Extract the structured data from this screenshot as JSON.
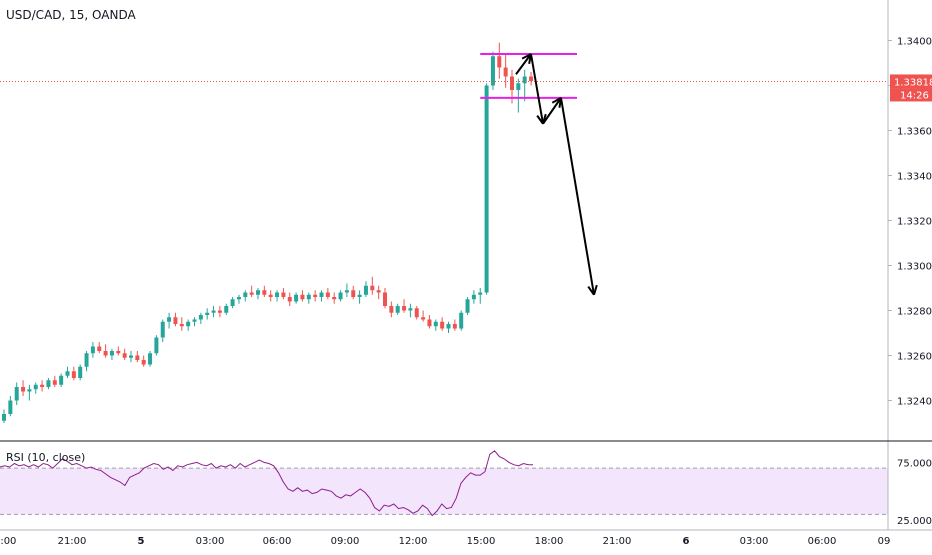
{
  "chart_data": [
    {
      "type": "candlestick",
      "title": "USD/CAD, 15, OANDA",
      "last_price": "1.33818",
      "countdown": "14:26",
      "ylim": [
        1.3222,
        1.3418
      ],
      "y_ticks": [
        "1.34000",
        "1.33800",
        "1.33600",
        "1.33400",
        "1.33200",
        "1.33000",
        "1.32800",
        "1.32600",
        "1.32400"
      ],
      "x_ticks": [
        "18:00",
        "21:00",
        "5",
        "03:00",
        "06:00",
        "09:00",
        "12:00",
        "15:00",
        "18:00",
        "21:00",
        "6",
        "03:00",
        "06:00",
        "09"
      ],
      "bold_x_ticks": [
        "5",
        "6"
      ],
      "colors": {
        "up": "#26a69a",
        "down": "#ef5350",
        "last_price": "#ef5350",
        "level_lines": "#e91ee9",
        "projection": "#000000"
      },
      "series": [
        {
          "ohlc": [
            [
              1.3231,
              1.3236,
              1.323,
              1.3234
            ],
            [
              1.3234,
              1.3242,
              1.3233,
              1.324
            ],
            [
              1.324,
              1.3248,
              1.3238,
              1.3246
            ],
            [
              1.3246,
              1.3249,
              1.3242,
              1.3244
            ],
            [
              1.3244,
              1.3247,
              1.324,
              1.3245
            ],
            [
              1.3245,
              1.3248,
              1.3243,
              1.3247
            ],
            [
              1.3247,
              1.3249,
              1.3244,
              1.3246
            ],
            [
              1.3246,
              1.325,
              1.3245,
              1.3249
            ],
            [
              1.3249,
              1.3251,
              1.3246,
              1.3247
            ],
            [
              1.3247,
              1.3252,
              1.3246,
              1.3251
            ],
            [
              1.3251,
              1.3255,
              1.325,
              1.3253
            ],
            [
              1.3253,
              1.3255,
              1.3249,
              1.325
            ],
            [
              1.325,
              1.3256,
              1.3249,
              1.3255
            ],
            [
              1.3255,
              1.3262,
              1.3253,
              1.3261
            ],
            [
              1.3261,
              1.3266,
              1.3259,
              1.3264
            ],
            [
              1.3264,
              1.3266,
              1.3261,
              1.3262
            ],
            [
              1.3262,
              1.3265,
              1.3259,
              1.326
            ],
            [
              1.326,
              1.3263,
              1.3258,
              1.3262
            ],
            [
              1.3262,
              1.3264,
              1.326,
              1.3261
            ],
            [
              1.3261,
              1.3263,
              1.3258,
              1.3259
            ],
            [
              1.3259,
              1.3262,
              1.3257,
              1.326
            ],
            [
              1.326,
              1.3262,
              1.3257,
              1.3258
            ],
            [
              1.3258,
              1.326,
              1.3255,
              1.3256
            ],
            [
              1.3256,
              1.3262,
              1.3255,
              1.3261
            ],
            [
              1.3261,
              1.3269,
              1.326,
              1.3268
            ],
            [
              1.3268,
              1.3276,
              1.3266,
              1.3275
            ],
            [
              1.3275,
              1.3279,
              1.3272,
              1.3277
            ],
            [
              1.3277,
              1.3279,
              1.3273,
              1.3274
            ],
            [
              1.3274,
              1.3277,
              1.3271,
              1.3273
            ],
            [
              1.3273,
              1.3276,
              1.3271,
              1.3275
            ],
            [
              1.3275,
              1.3277,
              1.3273,
              1.3276
            ],
            [
              1.3276,
              1.3279,
              1.3274,
              1.3278
            ],
            [
              1.3278,
              1.3281,
              1.3276,
              1.3279
            ],
            [
              1.3279,
              1.3282,
              1.3277,
              1.328
            ],
            [
              1.328,
              1.3282,
              1.3277,
              1.3279
            ],
            [
              1.3279,
              1.3283,
              1.3278,
              1.3282
            ],
            [
              1.3282,
              1.3286,
              1.3281,
              1.3285
            ],
            [
              1.3285,
              1.3287,
              1.3283,
              1.3286
            ],
            [
              1.3286,
              1.3289,
              1.3284,
              1.3288
            ],
            [
              1.3288,
              1.3291,
              1.3286,
              1.3287
            ],
            [
              1.3287,
              1.329,
              1.3285,
              1.3289
            ],
            [
              1.3289,
              1.3291,
              1.3286,
              1.3287
            ],
            [
              1.3287,
              1.3289,
              1.3284,
              1.3286
            ],
            [
              1.3286,
              1.3289,
              1.3284,
              1.3288
            ],
            [
              1.3288,
              1.329,
              1.3285,
              1.3286
            ],
            [
              1.3286,
              1.3288,
              1.3282,
              1.3284
            ],
            [
              1.3284,
              1.3288,
              1.3283,
              1.3287
            ],
            [
              1.3287,
              1.3289,
              1.3284,
              1.3285
            ],
            [
              1.3285,
              1.3288,
              1.3283,
              1.3287
            ],
            [
              1.3287,
              1.3289,
              1.3284,
              1.3286
            ],
            [
              1.3286,
              1.3289,
              1.3284,
              1.3288
            ],
            [
              1.3288,
              1.329,
              1.3285,
              1.3286
            ],
            [
              1.3286,
              1.3288,
              1.3283,
              1.3285
            ],
            [
              1.3285,
              1.3289,
              1.3284,
              1.3288
            ],
            [
              1.3288,
              1.3292,
              1.3286,
              1.3289
            ],
            [
              1.3289,
              1.3291,
              1.3285,
              1.3286
            ],
            [
              1.3286,
              1.3289,
              1.3283,
              1.3287
            ],
            [
              1.3287,
              1.3293,
              1.3286,
              1.3291
            ],
            [
              1.3291,
              1.3295,
              1.3287,
              1.3289
            ],
            [
              1.3289,
              1.3291,
              1.3285,
              1.3288
            ],
            [
              1.3288,
              1.329,
              1.3281,
              1.3282
            ],
            [
              1.3282,
              1.3284,
              1.3277,
              1.3279
            ],
            [
              1.3279,
              1.3283,
              1.3278,
              1.3282
            ],
            [
              1.3282,
              1.3285,
              1.3279,
              1.328
            ],
            [
              1.328,
              1.3283,
              1.3277,
              1.3281
            ],
            [
              1.3281,
              1.3282,
              1.3276,
              1.3277
            ],
            [
              1.3277,
              1.328,
              1.3275,
              1.3276
            ],
            [
              1.3276,
              1.3278,
              1.3272,
              1.3273
            ],
            [
              1.3273,
              1.3276,
              1.3271,
              1.3275
            ],
            [
              1.3275,
              1.3277,
              1.3271,
              1.3272
            ],
            [
              1.3272,
              1.3275,
              1.327,
              1.3274
            ],
            [
              1.3274,
              1.3276,
              1.3271,
              1.3272
            ],
            [
              1.3272,
              1.328,
              1.3271,
              1.3279
            ],
            [
              1.3279,
              1.3286,
              1.3278,
              1.3285
            ],
            [
              1.3285,
              1.3289,
              1.3283,
              1.3287
            ],
            [
              1.3287,
              1.329,
              1.3283,
              1.3288
            ],
            [
              1.3288,
              1.3381,
              1.3287,
              1.338
            ],
            [
              1.338,
              1.3395,
              1.3378,
              1.3393
            ],
            [
              1.3393,
              1.3399,
              1.3383,
              1.3388
            ],
            [
              1.3388,
              1.3394,
              1.3379,
              1.3384
            ],
            [
              1.3384,
              1.3387,
              1.3372,
              1.3378
            ],
            [
              1.3378,
              1.3383,
              1.3368,
              1.3381
            ],
            [
              1.3381,
              1.3387,
              1.3373,
              1.3384
            ],
            [
              1.3384,
              1.3386,
              1.338,
              1.3382
            ]
          ]
        }
      ]
    },
    {
      "type": "line",
      "title": "RSI (10, close)",
      "ylim": [
        20,
        90
      ],
      "y_ticks": [
        "75.000",
        "25.0000"
      ],
      "band": [
        30,
        70
      ],
      "series": [
        {
          "values": [
            71,
            72,
            71,
            74,
            72,
            73,
            71,
            73,
            71,
            74,
            73,
            70,
            74,
            78,
            76,
            73,
            74,
            72,
            70,
            71,
            69,
            68,
            65,
            62,
            60,
            58,
            55,
            62,
            64,
            66,
            70,
            72,
            74,
            73,
            69,
            71,
            68,
            72,
            71,
            73,
            74,
            75,
            73,
            72,
            74,
            70,
            72,
            71,
            73,
            70,
            74,
            71,
            73,
            75,
            77,
            75,
            74,
            72,
            66,
            58,
            52,
            50,
            53,
            50,
            51,
            48,
            49,
            52,
            51,
            50,
            46,
            44,
            47,
            46,
            49,
            52,
            49,
            44,
            36,
            33,
            38,
            37,
            39,
            35,
            36,
            34,
            31,
            33,
            38,
            35,
            29,
            33,
            39,
            35,
            36,
            44,
            57,
            62,
            66,
            64,
            64,
            67,
            82,
            85,
            80,
            78,
            75,
            73,
            72,
            74,
            73,
            73
          ]
        }
      ]
    }
  ],
  "labels": {
    "symbol": "USD/CAD, 15, OANDA",
    "rsi": "RSI (10, close)"
  }
}
